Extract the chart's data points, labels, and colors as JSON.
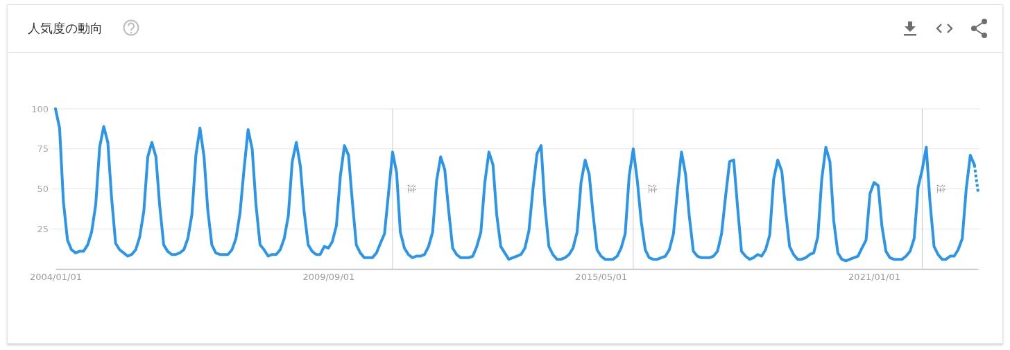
{
  "chart_data": {
    "type": "line",
    "title": "人気度の動向",
    "x": [
      "2004-01",
      "2004-02",
      "2004-03",
      "2004-04",
      "2004-05",
      "2004-06",
      "2004-07",
      "2004-08",
      "2004-09",
      "2004-10",
      "2004-11",
      "2004-12",
      "2005-01",
      "2005-02",
      "2005-03",
      "2005-04",
      "2005-05",
      "2005-06",
      "2005-07",
      "2005-08",
      "2005-09",
      "2005-10",
      "2005-11",
      "2005-12",
      "2006-01",
      "2006-02",
      "2006-03",
      "2006-04",
      "2006-05",
      "2006-06",
      "2006-07",
      "2006-08",
      "2006-09",
      "2006-10",
      "2006-11",
      "2006-12",
      "2007-01",
      "2007-02",
      "2007-03",
      "2007-04",
      "2007-05",
      "2007-06",
      "2007-07",
      "2007-08",
      "2007-09",
      "2007-10",
      "2007-11",
      "2007-12",
      "2008-01",
      "2008-02",
      "2008-03",
      "2008-04",
      "2008-05",
      "2008-06",
      "2008-07",
      "2008-08",
      "2008-09",
      "2008-10",
      "2008-11",
      "2008-12",
      "2009-01",
      "2009-02",
      "2009-03",
      "2009-04",
      "2009-05",
      "2009-06",
      "2009-07",
      "2009-08",
      "2009-09",
      "2009-10",
      "2009-11",
      "2009-12",
      "2010-01",
      "2010-02",
      "2010-03",
      "2010-04",
      "2010-05",
      "2010-06",
      "2010-07",
      "2010-08",
      "2010-09",
      "2010-10",
      "2010-11",
      "2010-12",
      "2011-01",
      "2011-02",
      "2011-03",
      "2011-04",
      "2011-05",
      "2011-06",
      "2011-07",
      "2011-08",
      "2011-09",
      "2011-10",
      "2011-11",
      "2011-12",
      "2012-01",
      "2012-02",
      "2012-03",
      "2012-04",
      "2012-05",
      "2012-06",
      "2012-07",
      "2012-08",
      "2012-09",
      "2012-10",
      "2012-11",
      "2012-12",
      "2013-01",
      "2013-02",
      "2013-03",
      "2013-04",
      "2013-05",
      "2013-06",
      "2013-07",
      "2013-08",
      "2013-09",
      "2013-10",
      "2013-11",
      "2013-12",
      "2014-01",
      "2014-02",
      "2014-03",
      "2014-04",
      "2014-05",
      "2014-06",
      "2014-07",
      "2014-08",
      "2014-09",
      "2014-10",
      "2014-11",
      "2014-12",
      "2015-01",
      "2015-02",
      "2015-03",
      "2015-04",
      "2015-05",
      "2015-06",
      "2015-07",
      "2015-08",
      "2015-09",
      "2015-10",
      "2015-11",
      "2015-12",
      "2016-01",
      "2016-02",
      "2016-03",
      "2016-04",
      "2016-05",
      "2016-06",
      "2016-07",
      "2016-08",
      "2016-09",
      "2016-10",
      "2016-11",
      "2016-12",
      "2017-01",
      "2017-02",
      "2017-03",
      "2017-04",
      "2017-05",
      "2017-06",
      "2017-07",
      "2017-08",
      "2017-09",
      "2017-10",
      "2017-11",
      "2017-12",
      "2018-01",
      "2018-02",
      "2018-03",
      "2018-04",
      "2018-05",
      "2018-06",
      "2018-07",
      "2018-08",
      "2018-09",
      "2018-10",
      "2018-11",
      "2018-12",
      "2019-01",
      "2019-02",
      "2019-03",
      "2019-04",
      "2019-05",
      "2019-06",
      "2019-07",
      "2019-08",
      "2019-09",
      "2019-10",
      "2019-11",
      "2019-12",
      "2020-01",
      "2020-02",
      "2020-03",
      "2020-04",
      "2020-05",
      "2020-06",
      "2020-07",
      "2020-08",
      "2020-09",
      "2020-10",
      "2020-11",
      "2020-12",
      "2021-01",
      "2021-02",
      "2021-03",
      "2021-04",
      "2021-05",
      "2021-06",
      "2021-07",
      "2021-08",
      "2021-09",
      "2021-10",
      "2021-11",
      "2021-12",
      "2022-01",
      "2022-02",
      "2022-03",
      "2022-04",
      "2022-05",
      "2022-06",
      "2022-07",
      "2022-08",
      "2022-09",
      "2022-10",
      "2022-11",
      "2022-12",
      "2023-01",
      "2023-02"
    ],
    "series": [
      {
        "color": "#2b95e9",
        "values": [
          100,
          88,
          42,
          18,
          12,
          10,
          11,
          11,
          15,
          23,
          40,
          76,
          89,
          79,
          45,
          16,
          12,
          10,
          8,
          9,
          12,
          20,
          36,
          70,
          79,
          70,
          40,
          15,
          11,
          9,
          9,
          10,
          12,
          19,
          34,
          71,
          88,
          70,
          37,
          15,
          10,
          9,
          9,
          9,
          12,
          19,
          35,
          62,
          87,
          75,
          40,
          15,
          12,
          8,
          9,
          9,
          12,
          19,
          33,
          67,
          79,
          64,
          36,
          15,
          11,
          9,
          9,
          14,
          13,
          17,
          27,
          58,
          77,
          71,
          43,
          15,
          10,
          7,
          7,
          7,
          10,
          16,
          22,
          47,
          73,
          60,
          23,
          13,
          9,
          7,
          8,
          8,
          9,
          14,
          23,
          55,
          70,
          62,
          37,
          13,
          9,
          7,
          7,
          7,
          8,
          14,
          23,
          54,
          73,
          65,
          34,
          14,
          10,
          6,
          7,
          8,
          9,
          13,
          24,
          50,
          72,
          77,
          40,
          14,
          9,
          6,
          6,
          7,
          9,
          13,
          23,
          54,
          68,
          59,
          35,
          12,
          8,
          6,
          6,
          6,
          8,
          13,
          22,
          58,
          75,
          55,
          30,
          12,
          7,
          6,
          6,
          7,
          8,
          12,
          22,
          49,
          73,
          59,
          33,
          11,
          8,
          7,
          7,
          7,
          8,
          11,
          22,
          45,
          67,
          68,
          40,
          11,
          8,
          6,
          7,
          9,
          8,
          12,
          21,
          56,
          68,
          61,
          37,
          14,
          9,
          6,
          6,
          7,
          9,
          10,
          20,
          56,
          76,
          67,
          30,
          10,
          6,
          5,
          6,
          7,
          8,
          13,
          18,
          47,
          54,
          52,
          27,
          11,
          7,
          6,
          6,
          6,
          8,
          11,
          19,
          51,
          62,
          76,
          42,
          14,
          9,
          6,
          6,
          8,
          8,
          12,
          19,
          50,
          71,
          65
        ]
      },
      {
        "color": "#2b95e9",
        "x": [
          "2023-02",
          "2023-03"
        ],
        "values": [
          65,
          48
        ],
        "line_style": "dotted"
      }
    ],
    "xlim": [
      "2004-01",
      "2023-03"
    ],
    "xticks": [
      {
        "value": "2004-01-01",
        "label": "2004/01/01"
      },
      {
        "value": "2009-09-01",
        "label": "2009/09/01"
      },
      {
        "value": "2015-05-01",
        "label": "2015/05/01"
      },
      {
        "value": "2021-01-01",
        "label": "2021/01/01"
      }
    ],
    "ylim": [
      0,
      100
    ],
    "yticks": [
      25,
      50,
      75,
      100
    ],
    "grid": "y",
    "ref_lines": [
      {
        "axis": "x",
        "value": "2011-01-01",
        "label": "注",
        "color": "#cccccc"
      },
      {
        "axis": "x",
        "value": "2016-01-01",
        "label": "注",
        "color": "#cccccc"
      },
      {
        "axis": "x",
        "value": "2022-01-01",
        "label": "注",
        "color": "#cccccc"
      }
    ]
  }
}
